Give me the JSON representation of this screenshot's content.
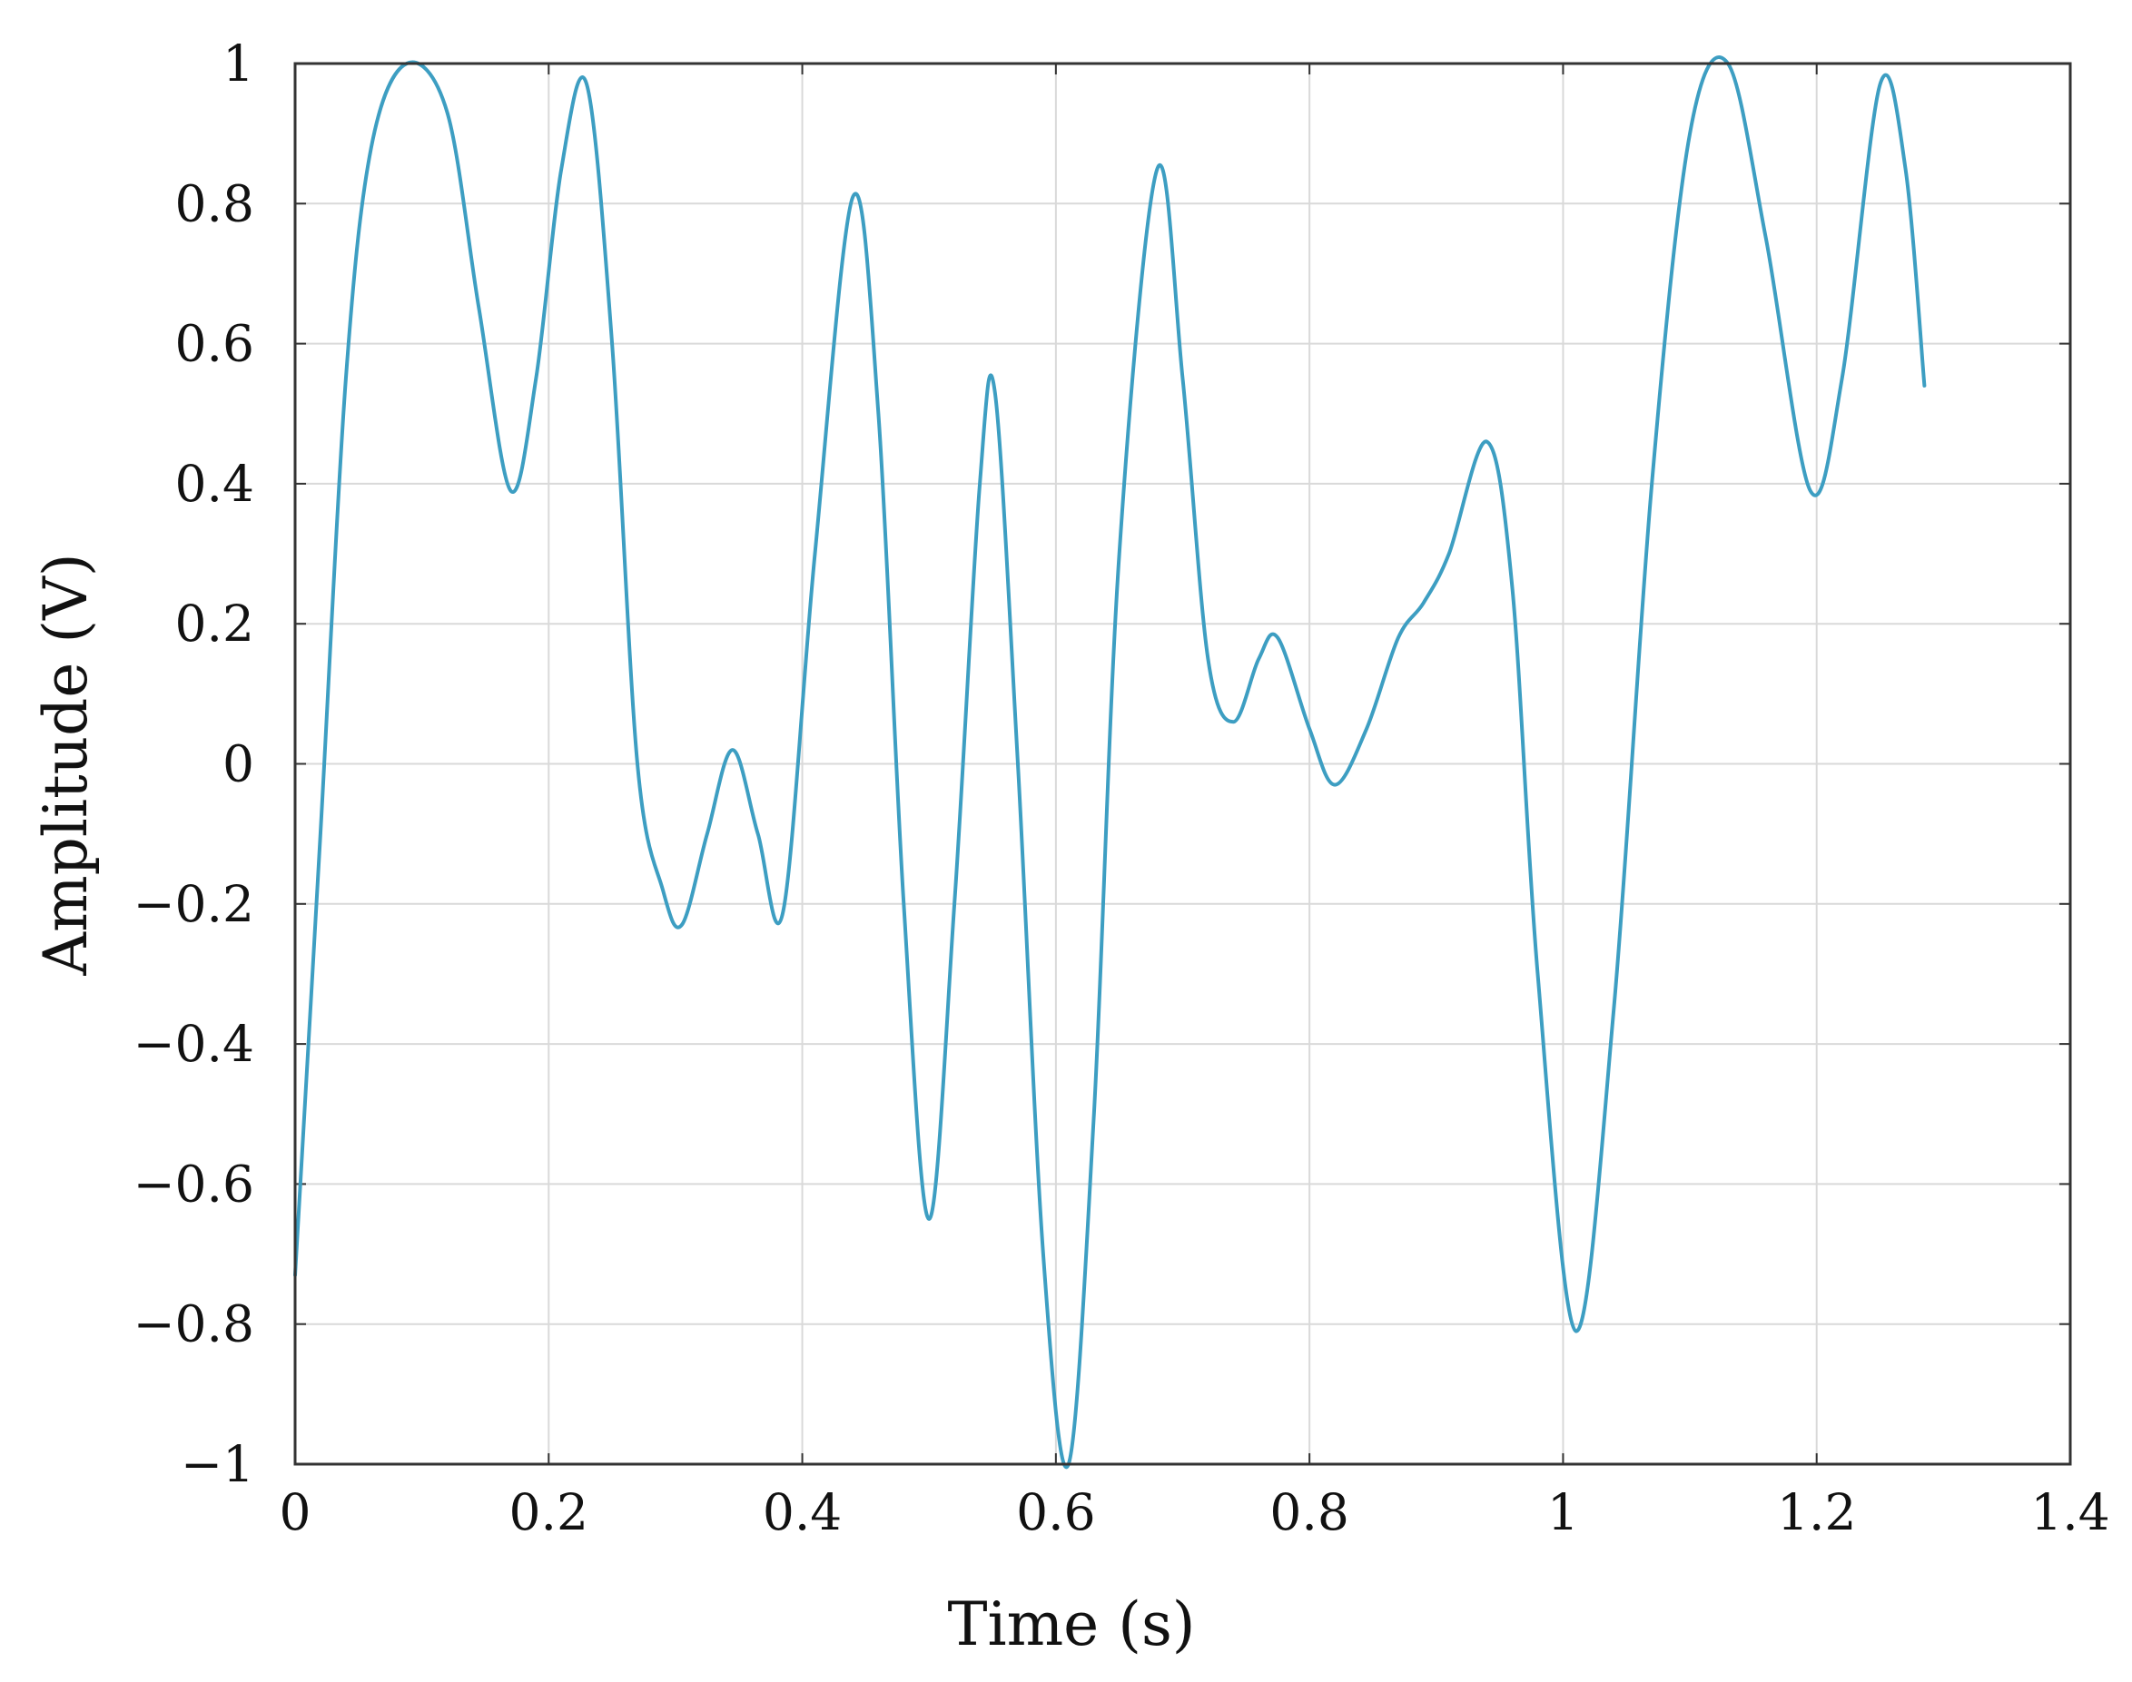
{
  "chart_data": {
    "type": "line",
    "xlabel": "Time (s)",
    "ylabel": "Amplitude  (V)",
    "xlim": [
      0,
      1.4
    ],
    "ylim": [
      -1,
      1
    ],
    "grid": true,
    "line_color": "#3d9ec2",
    "grid_color": "#d9d9d9",
    "axes_color": "#333333",
    "x_ticks": [
      {
        "value": 0,
        "label": "0"
      },
      {
        "value": 0.2,
        "label": "0.2"
      },
      {
        "value": 0.4,
        "label": "0.4"
      },
      {
        "value": 0.6,
        "label": "0.6"
      },
      {
        "value": 0.8,
        "label": "0.8"
      },
      {
        "value": 1,
        "label": "1"
      },
      {
        "value": 1.2,
        "label": "1.2"
      },
      {
        "value": 1.4,
        "label": "1.4"
      }
    ],
    "y_ticks": [
      {
        "value": 1,
        "label": "1"
      },
      {
        "value": 0.8,
        "label": "0.8"
      },
      {
        "value": 0.6,
        "label": "0.6"
      },
      {
        "value": 0.4,
        "label": "0.4"
      },
      {
        "value": 0.2,
        "label": "0.2"
      },
      {
        "value": 0,
        "label": "0"
      },
      {
        "value": -0.2,
        "label": "−0.2"
      },
      {
        "value": -0.4,
        "label": "−0.4"
      },
      {
        "value": -0.6,
        "label": "−0.6"
      },
      {
        "value": -0.8,
        "label": "−0.8"
      },
      {
        "value": -1,
        "label": "−1"
      }
    ],
    "series": [
      {
        "x": [
          0,
          0.02,
          0.04,
          0.06,
          0.088,
          0.12,
          0.145,
          0.17,
          0.19,
          0.21,
          0.23,
          0.25,
          0.27,
          0.29,
          0.305,
          0.325,
          0.345,
          0.365,
          0.385,
          0.41,
          0.44,
          0.46,
          0.48,
          0.5,
          0.52,
          0.54,
          0.552,
          0.57,
          0.59,
          0.61,
          0.63,
          0.65,
          0.68,
          0.7,
          0.72,
          0.74,
          0.76,
          0.775,
          0.8,
          0.82,
          0.845,
          0.87,
          0.89,
          0.91,
          0.94,
          0.96,
          0.98,
          1.01,
          1.04,
          1.07,
          1.1,
          1.13,
          1.16,
          1.195,
          1.22,
          1.25,
          1.27,
          1.285
        ],
        "y": [
          -0.73,
          -0.1,
          0.55,
          0.88,
          1.0,
          0.93,
          0.65,
          0.39,
          0.55,
          0.85,
          0.97,
          0.6,
          0.0,
          -0.18,
          -0.23,
          -0.1,
          0.02,
          -0.1,
          -0.21,
          0.3,
          0.81,
          0.5,
          -0.2,
          -0.65,
          -0.2,
          0.4,
          0.53,
          0.0,
          -0.7,
          -1.0,
          -0.5,
          0.3,
          0.85,
          0.55,
          0.15,
          0.06,
          0.15,
          0.18,
          0.05,
          -0.03,
          0.05,
          0.18,
          0.23,
          0.3,
          0.46,
          0.25,
          -0.3,
          -0.81,
          -0.35,
          0.4,
          0.9,
          1.0,
          0.75,
          0.39,
          0.55,
          0.97,
          0.85,
          0.54
        ]
      }
    ]
  }
}
